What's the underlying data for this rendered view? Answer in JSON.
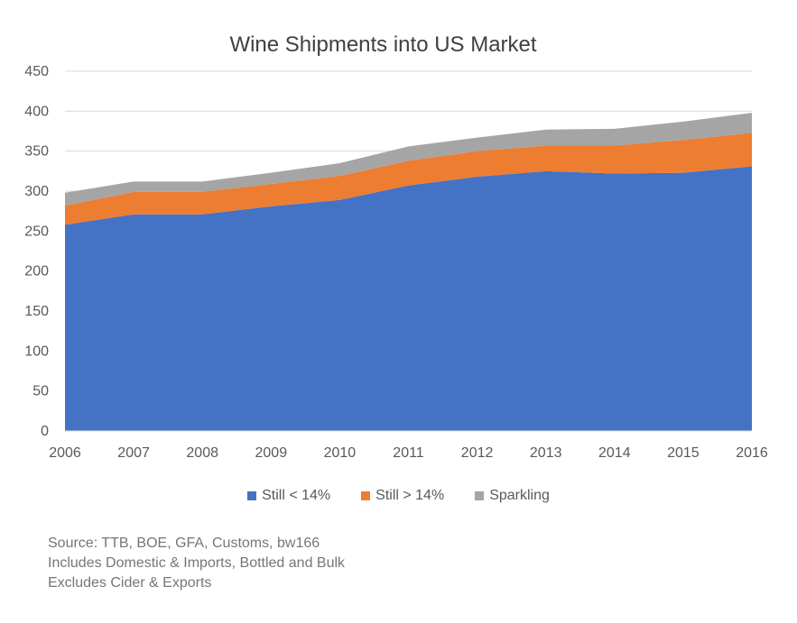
{
  "chart_data": {
    "type": "area",
    "stacked": true,
    "title": "Wine Shipments into US Market",
    "x": [
      "2006",
      "2007",
      "2008",
      "2009",
      "2010",
      "2011",
      "2012",
      "2013",
      "2014",
      "2015",
      "2016"
    ],
    "series": [
      {
        "name": "Still < 14%",
        "color": "#4472C4",
        "values": [
          258,
          271,
          271,
          281,
          289,
          307,
          318,
          325,
          322,
          323,
          331
        ]
      },
      {
        "name": "Still > 14%",
        "color": "#ED7D31",
        "values": [
          24,
          28,
          28,
          28,
          30,
          31,
          32,
          32,
          35,
          41,
          42
        ]
      },
      {
        "name": "Sparkling",
        "color": "#A5A5A5",
        "values": [
          16,
          13,
          13,
          14,
          16,
          18,
          17,
          20,
          21,
          23,
          25
        ]
      }
    ],
    "yticks": [
      0,
      50,
      100,
      150,
      200,
      250,
      300,
      350,
      400,
      450
    ],
    "ylim": [
      0,
      450
    ],
    "grid": true,
    "legend_position": "bottom"
  },
  "notes": [
    "Source: TTB, BOE, GFA, Customs, bw166",
    "Includes Domestic & Imports, Bottled and Bulk",
    "Excludes Cider & Exports"
  ]
}
